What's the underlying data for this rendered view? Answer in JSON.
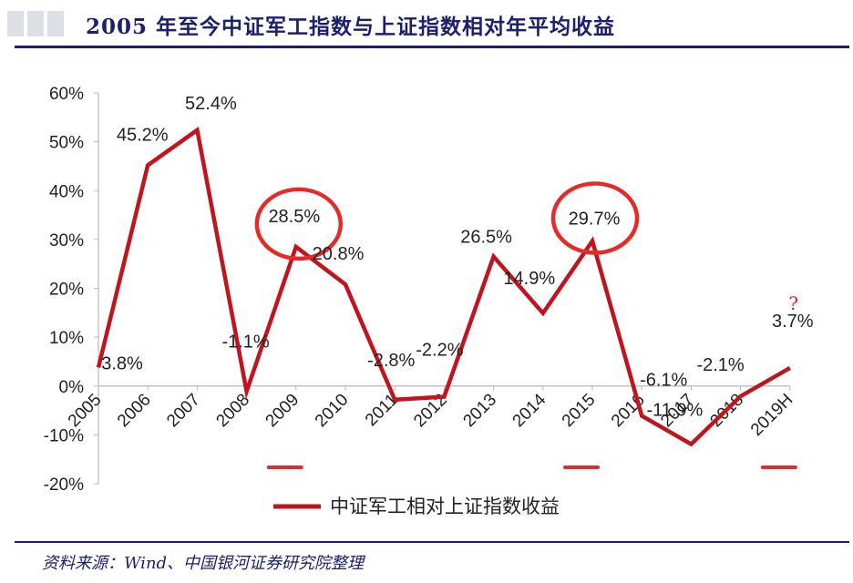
{
  "page": {
    "title": "2005 年至今中证军工指数与上证指数相对年平均收益",
    "source": "资料来源：Wind、中国银河证券研究院整理"
  },
  "colors": {
    "line": "#c0151f",
    "highlight": "#e62a2a",
    "annotation": "#e02020",
    "axis_text": "#222222",
    "title": "#1b1f6e"
  },
  "chart_data": {
    "type": "line",
    "categories": [
      "2005",
      "2006",
      "2007",
      "2008",
      "2009",
      "2010",
      "2011",
      "2012",
      "2013",
      "2014",
      "2015",
      "2016",
      "2017",
      "2018",
      "2019H"
    ],
    "series": [
      {
        "name": "中证军工相对上证指数收益",
        "values": [
          3.8,
          45.2,
          52.4,
          -1.1,
          28.5,
          20.8,
          -2.8,
          -2.2,
          26.5,
          14.9,
          29.7,
          -6.1,
          -11.9,
          -2.1,
          3.7
        ],
        "data_labels": [
          "3.8%",
          "45.2%",
          "52.4%",
          "-1.1%",
          "28.5%",
          "20.8%",
          "-2.8%",
          "-2.2%",
          "26.5%",
          "14.9%",
          "29.7%",
          "-6.1%",
          "-11.9%",
          "-2.1%",
          "3.7%"
        ]
      }
    ],
    "y_ticks": [
      60,
      50,
      40,
      30,
      20,
      10,
      0,
      -10,
      -20
    ],
    "y_tick_labels": [
      "60%",
      "50%",
      "40%",
      "30%",
      "20%",
      "10%",
      "0%",
      "-10%",
      "-20%"
    ],
    "ylim": [
      -20,
      60
    ],
    "grid": false,
    "legend": {
      "position": "bottom",
      "label": "中证军工相对上证指数收益"
    },
    "annotations": {
      "circled_points": [
        "2009",
        "2015"
      ],
      "underlined_categories": [
        "2009",
        "2015",
        "2019H"
      ],
      "question_mark": "?",
      "question_mark_category": "2019H"
    }
  }
}
